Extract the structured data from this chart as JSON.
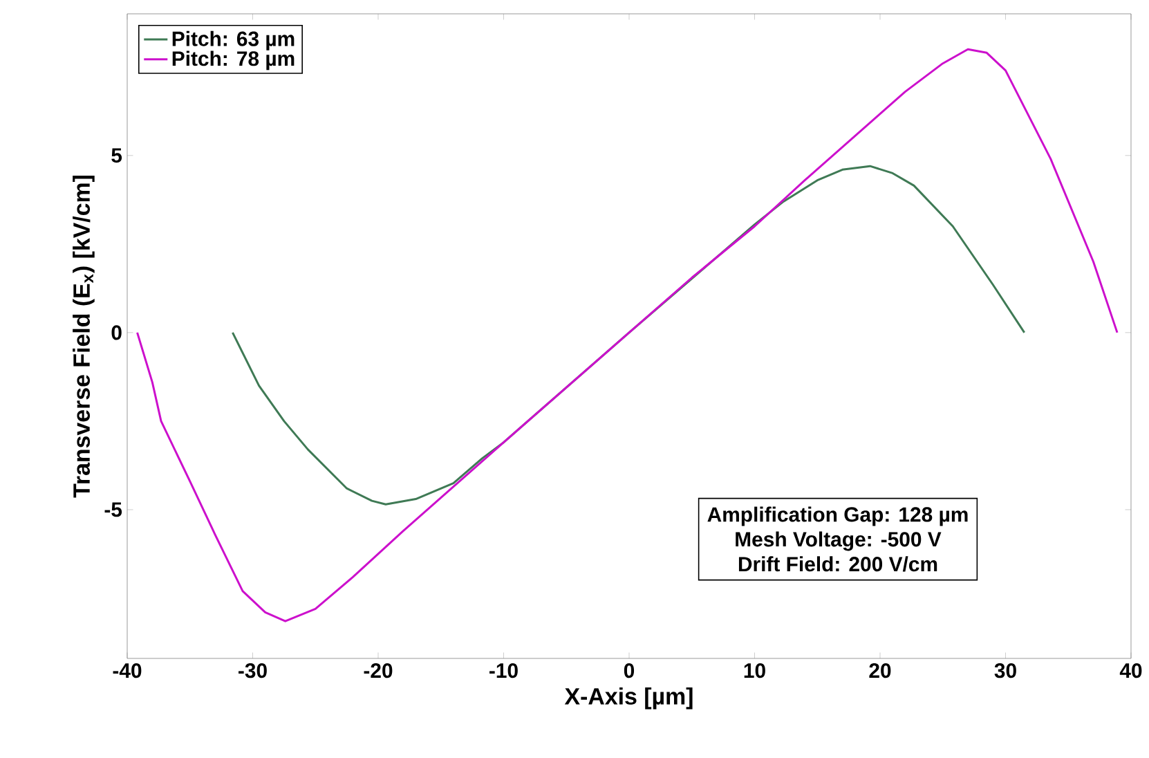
{
  "chart_data": {
    "type": "line",
    "xlabel": "X-Axis [µm]",
    "ylabel": "Transverse Field (E$_{x}$) [kV/cm]",
    "xlim": [
      -40,
      40
    ],
    "ylim": [
      -9.2,
      9
    ],
    "xticks": [
      -40,
      -30,
      -20,
      -10,
      0,
      10,
      20,
      30,
      40
    ],
    "yticks": [
      -5,
      0,
      5
    ],
    "legend": "top left",
    "grid": false,
    "line_style": "solid",
    "marker": "none",
    "annotations": [
      "Amplification Gap: 128 µm",
      "Mesh Voltage: -500 V",
      "Drift Field: 200 V/cm"
    ],
    "series": [
      {
        "name": "Pitch: 63 µm",
        "color": "#3f7a55",
        "x": [
          -31.6,
          -29.5,
          -27.5,
          -25.6,
          -22.5,
          -20.5,
          -19.4,
          -17,
          -14,
          -11.7,
          -10,
          0,
          10,
          12.3,
          15,
          17,
          19.2,
          21,
          22.7,
          25.8,
          29,
          31.5
        ],
        "values": [
          0,
          -1.5,
          -2.5,
          -3.3,
          -4.4,
          -4.75,
          -4.85,
          -4.7,
          -4.25,
          -3.55,
          -3.1,
          0,
          3.05,
          3.7,
          4.3,
          4.6,
          4.7,
          4.5,
          4.15,
          3.0,
          1.35,
          0
        ]
      },
      {
        "name": "Pitch: 78 µm",
        "color": "#cc10cc",
        "x": [
          -39.2,
          -38,
          -37.3,
          -35,
          -33,
          -30.8,
          -29,
          -27.4,
          -25,
          -22,
          -18,
          -14,
          -10,
          -5,
          0,
          5,
          10,
          14,
          18,
          22,
          25,
          27,
          28.5,
          30,
          33.6,
          37,
          38.9
        ],
        "values": [
          0,
          -1.4,
          -2.5,
          -4.2,
          -5.7,
          -7.3,
          -7.9,
          -8.15,
          -7.8,
          -6.9,
          -5.6,
          -4.35,
          -3.1,
          -1.55,
          0,
          1.55,
          3.0,
          4.3,
          5.55,
          6.8,
          7.6,
          8.0,
          7.9,
          7.4,
          4.9,
          2.0,
          0
        ]
      }
    ]
  }
}
